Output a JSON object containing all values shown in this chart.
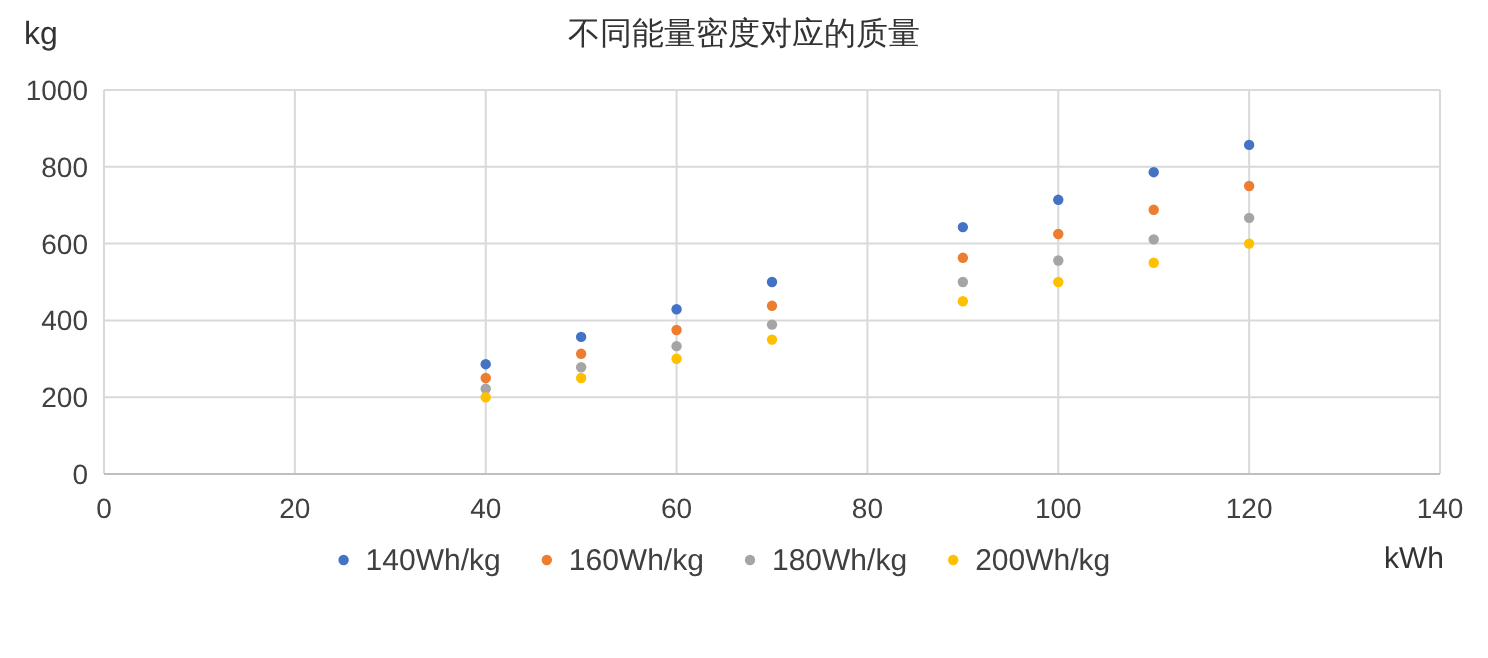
{
  "chart_data": {
    "type": "scatter",
    "title": "不同能量密度对应的质量",
    "xlabel": "kWh",
    "ylabel": "kg",
    "x": [
      40,
      50,
      60,
      70,
      90,
      100,
      110,
      120
    ],
    "series": [
      {
        "name": "140Wh/kg",
        "color": "#4472c4",
        "values": [
          286,
          357,
          429,
          500,
          643,
          714,
          786,
          857
        ]
      },
      {
        "name": "160Wh/kg",
        "color": "#ed7d31",
        "values": [
          250,
          313,
          375,
          438,
          563,
          625,
          688,
          750
        ]
      },
      {
        "name": "180Wh/kg",
        "color": "#a5a5a5",
        "values": [
          222,
          278,
          333,
          389,
          500,
          556,
          611,
          667
        ]
      },
      {
        "name": "200Wh/kg",
        "color": "#ffc000",
        "values": [
          200,
          250,
          300,
          350,
          450,
          500,
          550,
          600
        ]
      }
    ],
    "xlim": [
      0,
      140
    ],
    "xticks": [
      0,
      20,
      40,
      60,
      80,
      100,
      120,
      140
    ],
    "ylim": [
      0,
      1000
    ],
    "yticks": [
      0,
      200,
      400,
      600,
      800,
      1000
    ],
    "grid": true,
    "legend": "bottom",
    "marker": "circle"
  }
}
